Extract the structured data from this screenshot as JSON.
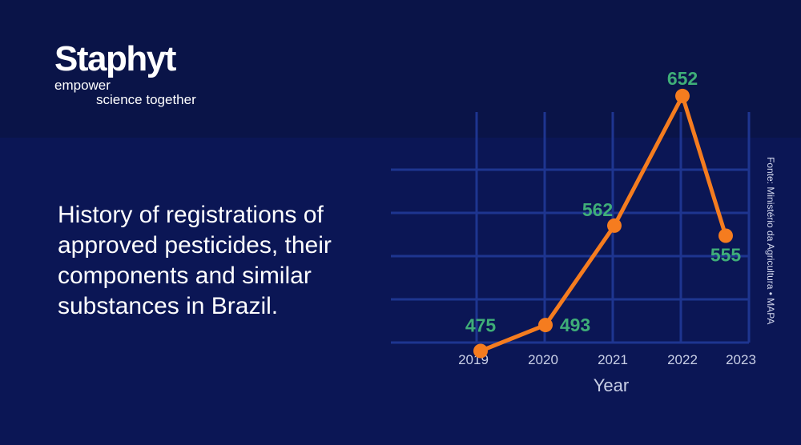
{
  "brand": {
    "name": "Staphyt",
    "tagline_line1": "empower",
    "tagline_line2": "science together"
  },
  "headline": "History of registrations of approved pesticides, their components and similar substances in Brazil.",
  "source": "Fonte: Ministério da Agricultura • MAPA",
  "colors": {
    "background": "#0b1655",
    "line": "#f57c1f",
    "data_label": "#3fae78",
    "grid": "#1e3590"
  },
  "chart_data": {
    "type": "line",
    "x": [
      "2019",
      "2020",
      "2021",
      "2022",
      "2023"
    ],
    "series": [
      {
        "values": [
          475,
          493,
          562,
          652,
          555
        ]
      }
    ],
    "data_labels": [
      "475",
      "493",
      "562",
      "652",
      "555"
    ],
    "xlabel": "Year",
    "ylabel": "",
    "ylim": [
      470,
      675
    ],
    "grid": true,
    "legend": "none"
  }
}
